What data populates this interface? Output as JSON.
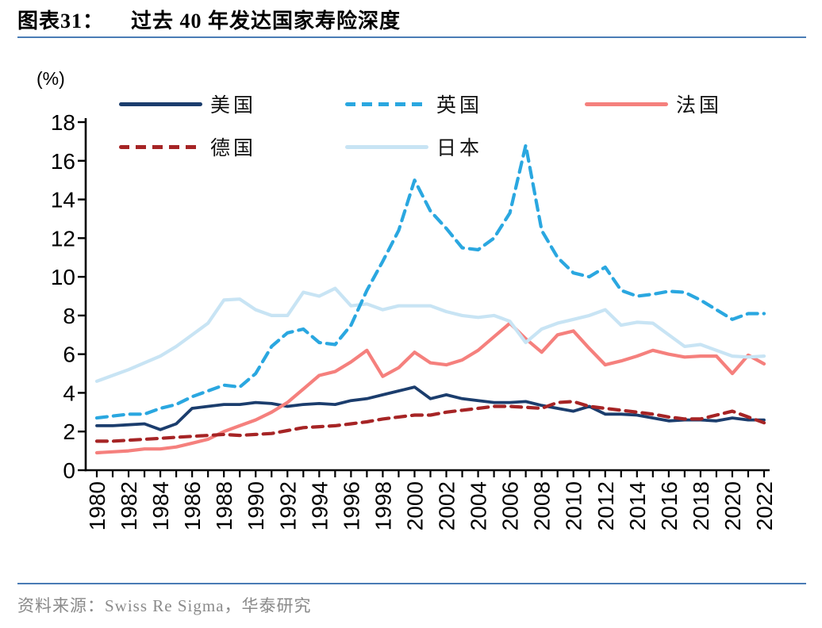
{
  "page": {
    "title_prefix": "图表31：",
    "title_text": "过去 40 年发达国家寿险深度",
    "unit_label": "(%)",
    "source_text": "资料来源：Swiss Re Sigma，华泰研究"
  },
  "colors": {
    "title_rule": "#4a7cb5",
    "axis": "#000000",
    "source_text": "#8a8a8a",
    "usa": "#1b3d6d",
    "uk": "#2aa7e0",
    "france": "#f5807d",
    "germany": "#a62425",
    "japan": "#c8e4f4"
  },
  "chart_data": {
    "type": "line",
    "title": "过去 40 年发达国家寿险深度",
    "xlabel": "",
    "ylabel": "(%)",
    "ylim": [
      0,
      18
    ],
    "ytick_step": 2,
    "xtick_label_step": 2,
    "grid": false,
    "legend_position": "top",
    "x": [
      1980,
      1981,
      1982,
      1983,
      1984,
      1985,
      1986,
      1987,
      1988,
      1989,
      1990,
      1991,
      1992,
      1993,
      1994,
      1995,
      1996,
      1997,
      1998,
      1999,
      2000,
      2001,
      2002,
      2003,
      2004,
      2005,
      2006,
      2007,
      2008,
      2009,
      2010,
      2011,
      2012,
      2013,
      2014,
      2015,
      2016,
      2017,
      2018,
      2019,
      2020,
      2021,
      2022
    ],
    "series": [
      {
        "key": "usa",
        "name": "美国",
        "style": "solid",
        "values": [
          2.3,
          2.3,
          2.35,
          2.4,
          2.1,
          2.4,
          3.2,
          3.3,
          3.4,
          3.4,
          3.5,
          3.45,
          3.3,
          3.4,
          3.45,
          3.4,
          3.6,
          3.7,
          3.9,
          4.1,
          4.3,
          3.7,
          3.9,
          3.7,
          3.6,
          3.5,
          3.5,
          3.55,
          3.35,
          3.2,
          3.05,
          3.3,
          2.9,
          2.9,
          2.85,
          2.7,
          2.55,
          2.6,
          2.6,
          2.55,
          2.7,
          2.6,
          2.6
        ]
      },
      {
        "key": "uk",
        "name": "英国",
        "style": "dashed",
        "values": [
          2.7,
          2.8,
          2.9,
          2.9,
          3.2,
          3.4,
          3.8,
          4.1,
          4.4,
          4.3,
          5.0,
          6.4,
          7.1,
          7.3,
          6.6,
          6.5,
          7.5,
          9.3,
          10.8,
          12.4,
          15.0,
          13.4,
          12.5,
          11.5,
          11.4,
          12.0,
          13.3,
          16.8,
          12.4,
          11.0,
          10.2,
          10.0,
          10.5,
          9.3,
          9.0,
          9.1,
          9.25,
          9.2,
          8.8,
          8.3,
          7.8,
          8.1,
          8.1
        ]
      },
      {
        "key": "france",
        "name": "法国",
        "style": "solid",
        "values": [
          0.9,
          0.95,
          1.0,
          1.1,
          1.1,
          1.2,
          1.4,
          1.6,
          2.0,
          2.3,
          2.6,
          3.0,
          3.5,
          4.2,
          4.9,
          5.1,
          5.6,
          6.2,
          4.85,
          5.3,
          6.1,
          5.55,
          5.45,
          5.7,
          6.2,
          6.9,
          7.6,
          6.8,
          6.1,
          7.0,
          7.2,
          6.3,
          5.45,
          5.65,
          5.9,
          6.2,
          6.0,
          5.85,
          5.9,
          5.9,
          5.0,
          5.95,
          5.5
        ]
      },
      {
        "key": "germany",
        "name": "德国",
        "style": "dashed",
        "values": [
          1.5,
          1.5,
          1.55,
          1.6,
          1.65,
          1.7,
          1.75,
          1.8,
          1.85,
          1.8,
          1.85,
          1.9,
          2.05,
          2.2,
          2.25,
          2.3,
          2.4,
          2.5,
          2.65,
          2.75,
          2.85,
          2.85,
          3.0,
          3.1,
          3.2,
          3.3,
          3.3,
          3.25,
          3.2,
          3.5,
          3.55,
          3.3,
          3.2,
          3.1,
          3.0,
          2.9,
          2.75,
          2.65,
          2.65,
          2.85,
          3.05,
          2.75,
          2.45
        ]
      },
      {
        "key": "japan",
        "name": "日本",
        "style": "solid",
        "values": [
          4.6,
          4.9,
          5.2,
          5.55,
          5.9,
          6.4,
          7.0,
          7.6,
          8.8,
          8.85,
          8.3,
          8.0,
          8.0,
          9.2,
          9.0,
          9.4,
          8.5,
          8.6,
          8.3,
          8.5,
          8.5,
          8.5,
          8.2,
          8.0,
          7.9,
          8.0,
          7.7,
          6.6,
          7.3,
          7.6,
          7.8,
          8.0,
          8.3,
          7.5,
          7.65,
          7.6,
          7.0,
          6.4,
          6.5,
          6.2,
          5.9,
          5.85,
          5.9
        ]
      }
    ]
  }
}
